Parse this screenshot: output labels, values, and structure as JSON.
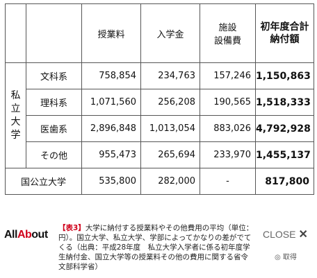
{
  "table": {
    "headers": [
      "授業料",
      "入学金",
      "施設",
      "設備費",
      "初年度合計",
      "納付額"
    ],
    "group_private": [
      "私",
      "立",
      "大",
      "学"
    ],
    "rows": [
      {
        "label": "文科系",
        "tuition": "758,854",
        "entrance": "234,763",
        "facility": "157,246",
        "total": "1,150,863"
      },
      {
        "label": "理科系",
        "tuition": "1,071,560",
        "entrance": "256,208",
        "facility": "190,565",
        "total": "1,518,333"
      },
      {
        "label": "医歯系",
        "tuition": "2,896,848",
        "entrance": "1,013,054",
        "facility": "883,026",
        "total": "4,792,928"
      },
      {
        "label": "その他",
        "tuition": "955,473",
        "entrance": "265,694",
        "facility": "233,970",
        "total": "1,455,137"
      }
    ],
    "public": {
      "label": "国公立大学",
      "tuition": "535,800",
      "entrance": "282,000",
      "facility": "-",
      "total": "817,800"
    }
  },
  "footer": {
    "logo_a": "All",
    "logo_b": "Ab",
    "logo_c": "out",
    "caption_tag": "【表3】",
    "caption_text": "大学に納付する授業料やその他費用の平均（単位：円）。国立大学、私立大学、学部によってかなりの差がでてくる（出典：平成28年度　私立大学入学者に係る初年度学生納付金、国立大学等の授業料その他の費用に関する省令　文部科学省）",
    "close_label": "CLOSE",
    "close_icon": "✕",
    "watermark": "◎ 取得"
  }
}
